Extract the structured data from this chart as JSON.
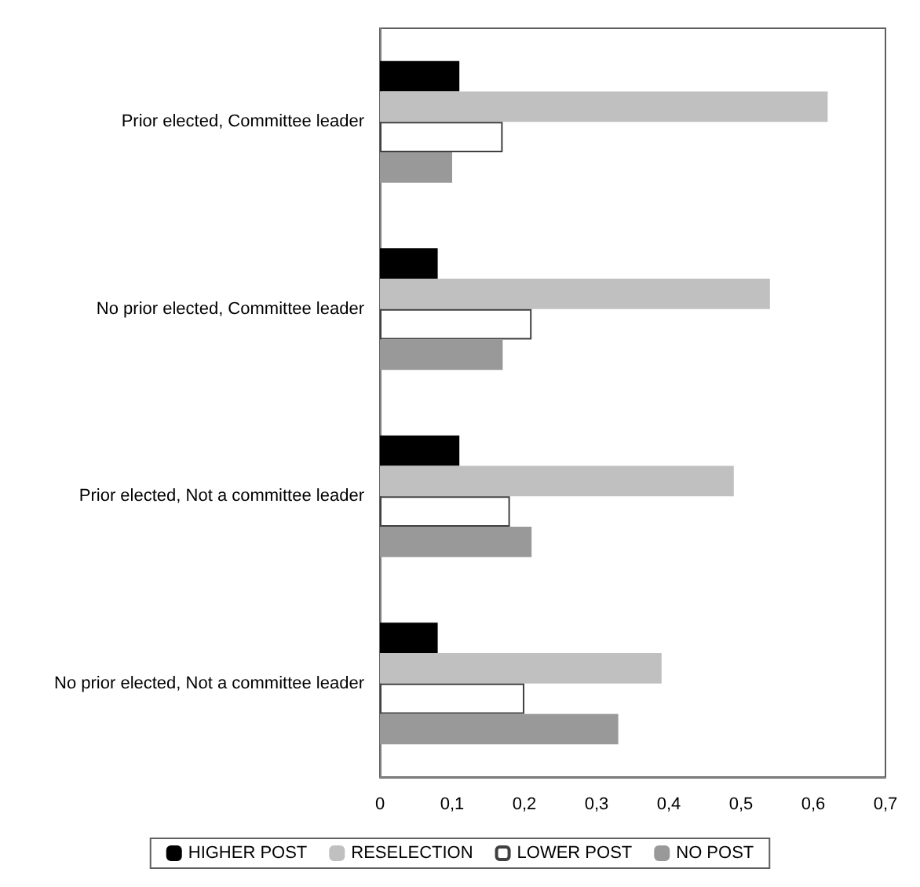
{
  "chart_data": {
    "type": "bar",
    "orientation": "horizontal",
    "categories": [
      "Prior elected, Committee leader",
      "No prior elected, Committee leader",
      "Prior elected, Not a committee leader",
      "No prior elected, Not a committee leader"
    ],
    "series": [
      {
        "name": "HIGHER POST",
        "color": "#000000",
        "values": [
          0.11,
          0.08,
          0.11,
          0.08
        ]
      },
      {
        "name": "RESELECTION",
        "color": "#c0c0c0",
        "values": [
          0.62,
          0.54,
          0.49,
          0.39
        ]
      },
      {
        "name": "LOWER POST",
        "color": "#ffffff",
        "values": [
          0.17,
          0.21,
          0.18,
          0.2
        ]
      },
      {
        "name": "NO POST",
        "color": "#999999",
        "values": [
          0.1,
          0.17,
          0.21,
          0.33
        ]
      }
    ],
    "xlim": [
      0,
      0.7
    ],
    "xticks": [
      0,
      {
        "value": 0.1,
        "label": "0,1"
      },
      {
        "value": 0.2,
        "label": "0,2"
      },
      {
        "value": 0.3,
        "label": "0,3"
      },
      {
        "value": 0.4,
        "label": "0,4"
      },
      {
        "value": 0.5,
        "label": "0,5"
      },
      {
        "value": 0.6,
        "label": "0,6"
      },
      {
        "value": 0.7,
        "label": "0,7"
      }
    ],
    "grid": false,
    "legend": "bottom"
  }
}
